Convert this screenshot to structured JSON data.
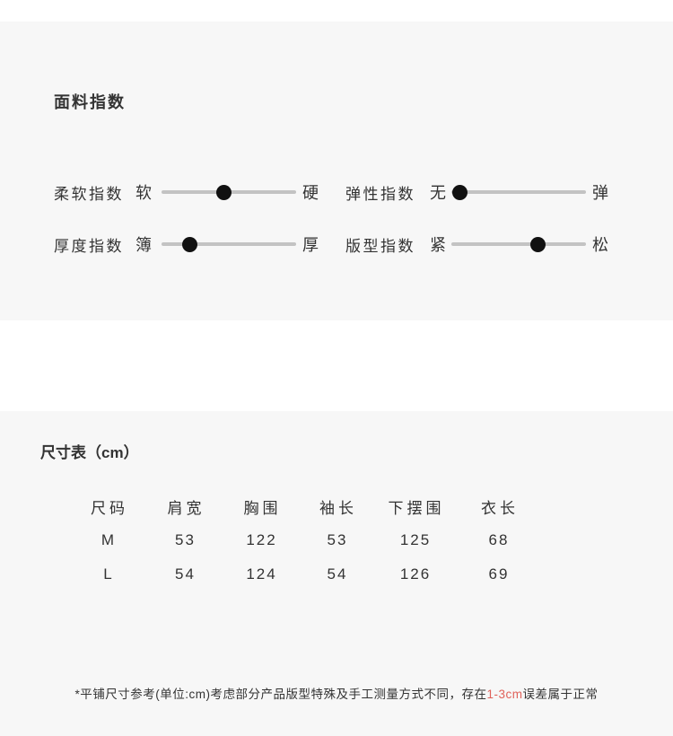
{
  "fabric": {
    "title": "面料指数",
    "sliders": [
      {
        "name": "柔软指数",
        "min": "软",
        "max": "硬",
        "value": 46
      },
      {
        "name": "厚度指数",
        "min": "簿",
        "max": "厚",
        "value": 21
      },
      {
        "name": "弹性指数",
        "min": "无",
        "max": "弹",
        "value": 6
      },
      {
        "name": "版型指数",
        "min": "紧",
        "max": "松",
        "value": 64
      }
    ]
  },
  "size": {
    "title": "尺寸表（cm）",
    "headers": [
      "尺码",
      "肩宽",
      "胸围",
      "袖长",
      "下摆围",
      "衣长"
    ],
    "rows": [
      [
        "M",
        "53",
        "122",
        "53",
        "125",
        "68"
      ],
      [
        "L",
        "54",
        "124",
        "54",
        "126",
        "69"
      ]
    ],
    "note_prefix": "*平铺尺寸参考(单位:cm)考虑部分产品版型特殊及手工测量方式不同，存在",
    "note_highlight": "1-3cm",
    "note_suffix": "误差属于正常"
  },
  "colors": {
    "panel_bg": "#f7f7f7",
    "text": "#333333",
    "track": "#c3c3c3",
    "dot": "#111111",
    "accent": "#e0615a"
  }
}
